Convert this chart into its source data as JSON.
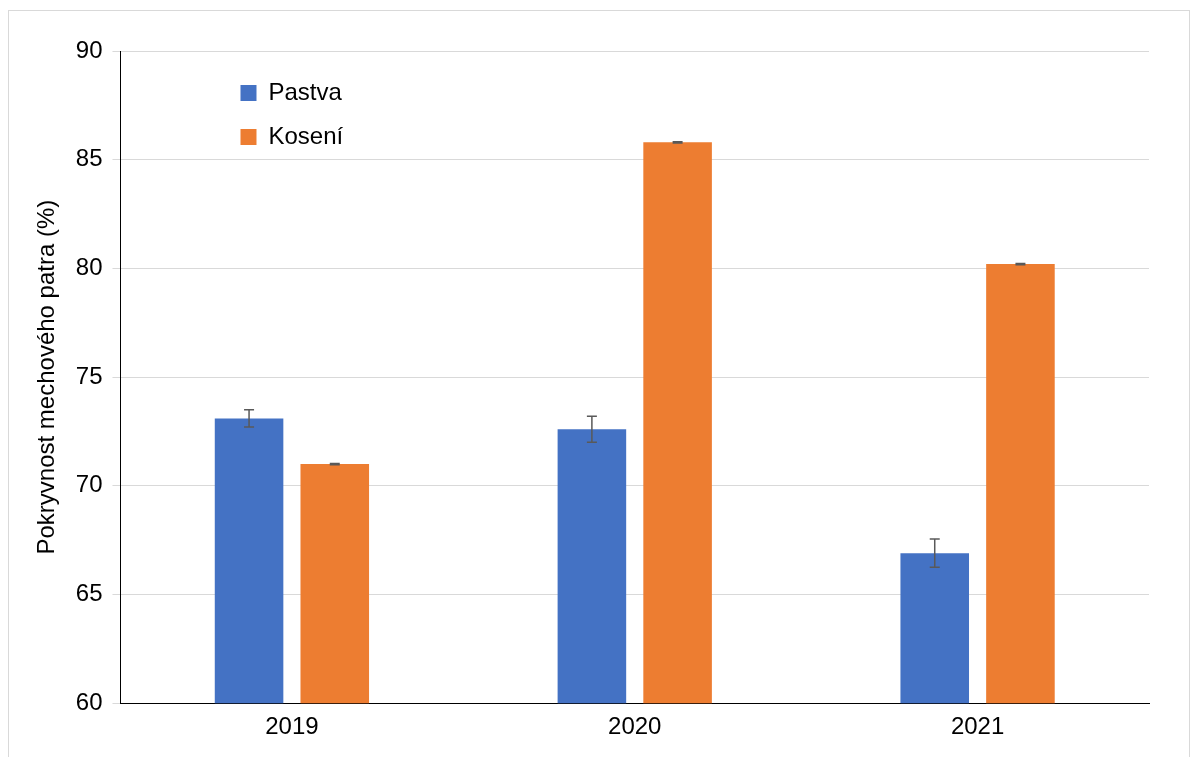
{
  "chart_data": {
    "type": "bar",
    "ylabel": "Pokryvnost mechového patra (%)",
    "categories": [
      "2019",
      "2020",
      "2021"
    ],
    "series": [
      {
        "name": "Pastva",
        "color": "#4472c4",
        "values": [
          73.1,
          72.6,
          66.9
        ],
        "errors": [
          0.4,
          0.6,
          0.65
        ]
      },
      {
        "name": "Kosení",
        "color": "#ed7d31",
        "values": [
          71.0,
          85.8,
          80.2
        ],
        "errors": [
          0.03,
          0.03,
          0.03
        ]
      }
    ],
    "ylim": [
      60,
      90
    ],
    "yticks": [
      60,
      65,
      70,
      75,
      80,
      85,
      90
    ],
    "grid": "y",
    "legend": "top left"
  }
}
